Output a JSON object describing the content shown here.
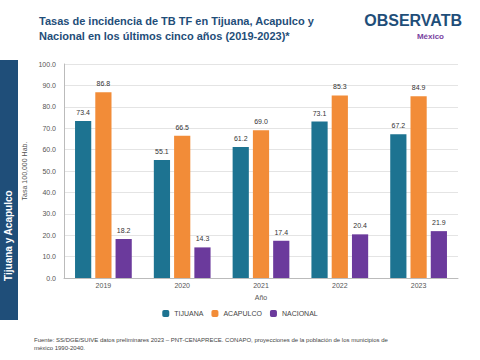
{
  "chart_data": {
    "type": "bar",
    "title": "Tasas de incidencia de TB TF en Tijuana, Acapulco y Nacional en los últimos cinco años (2019-2023)*",
    "x_label": "Año",
    "y_label": "Tasa 100,000 Hab.",
    "categories": [
      "2019",
      "2020",
      "2021",
      "2022",
      "2023"
    ],
    "series": [
      {
        "name": "TIJUANA",
        "color": "#1d7391",
        "values": [
          73.4,
          55.1,
          61.2,
          73.1,
          67.2
        ],
        "value_labels": [
          "73.4",
          "55.1",
          "61.2",
          "73.1",
          "67.2"
        ]
      },
      {
        "name": "ACAPULCO",
        "color": "#f28c38",
        "values": [
          86.8,
          66.5,
          69.0,
          85.3,
          84.9
        ],
        "value_labels": [
          "86.8",
          "66.5",
          "69.0",
          "85.3",
          "84.9"
        ]
      },
      {
        "name": "NACIONAL",
        "color": "#6b3a9c",
        "values": [
          18.2,
          14.3,
          17.4,
          20.4,
          21.9
        ],
        "value_labels": [
          "18.2",
          "14.3",
          "17.4",
          "20.4",
          "21.9"
        ]
      }
    ],
    "ylim": [
      0,
      100
    ],
    "yticks": [
      {
        "value": 0,
        "label": "0.0"
      },
      {
        "value": 10,
        "label": "10.0"
      },
      {
        "value": 20,
        "label": "20.0"
      },
      {
        "value": 30,
        "label": "30.0"
      },
      {
        "value": 40,
        "label": "40.0"
      },
      {
        "value": 50,
        "label": "50.0"
      },
      {
        "value": 60,
        "label": "60.0"
      },
      {
        "value": 70,
        "label": "70.0"
      },
      {
        "value": 80,
        "label": "80.0"
      },
      {
        "value": 90,
        "label": "90.0"
      },
      {
        "value": 100,
        "label": "100.0"
      }
    ],
    "grid": true,
    "legend": "bottom",
    "data_labels": true,
    "annotations": [
      "Tijuana y Acapulco",
      "OBSERVATB",
      "México",
      "Fuente: SS/DGE/SUIVE datos preliminares 2023 – PNT-CENAPRECE. CONAPO, proyecciones de la población de los municipios de méxico 1990-2040."
    ]
  }
}
